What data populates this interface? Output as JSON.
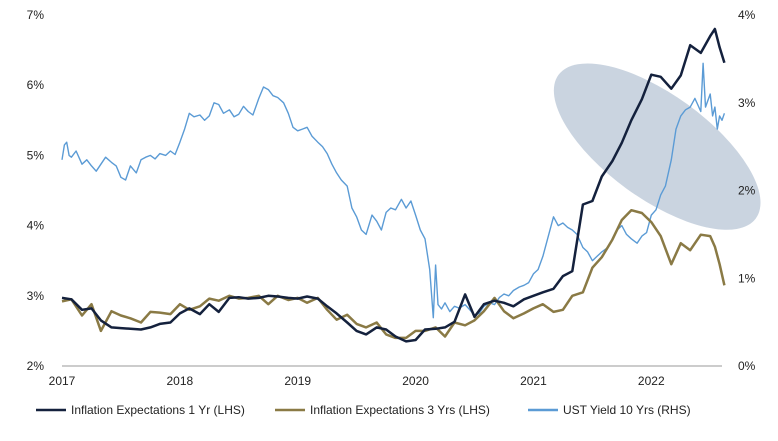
{
  "chart_data": {
    "type": "line",
    "x_ticks": [
      "2017",
      "2018",
      "2019",
      "2020",
      "2021",
      "2022"
    ],
    "y_left_ticks": [
      "2%",
      "3%",
      "4%",
      "5%",
      "6%",
      "7%"
    ],
    "y_right_ticks": [
      "0%",
      "1%",
      "2%",
      "3%",
      "4%"
    ],
    "ylim_left": [
      2,
      7
    ],
    "ylim_right": [
      0,
      4
    ],
    "xlim": [
      2017.0,
      2022.6
    ],
    "legend_position": "bottom",
    "highlight": {
      "shape": "ellipse",
      "center": [
        2022.05,
        2.5
      ],
      "axis": "right",
      "color": "#b8c6d6"
    },
    "series": [
      {
        "name": "Inflation Expectations 1 Yr (LHS)",
        "axis": "left",
        "color": "#14213d",
        "points": [
          [
            2017.0,
            2.97
          ],
          [
            2017.08,
            2.95
          ],
          [
            2017.17,
            2.8
          ],
          [
            2017.25,
            2.82
          ],
          [
            2017.33,
            2.65
          ],
          [
            2017.42,
            2.55
          ],
          [
            2017.5,
            2.54
          ],
          [
            2017.58,
            2.53
          ],
          [
            2017.67,
            2.52
          ],
          [
            2017.75,
            2.55
          ],
          [
            2017.83,
            2.6
          ],
          [
            2017.92,
            2.62
          ],
          [
            2018.0,
            2.75
          ],
          [
            2018.08,
            2.82
          ],
          [
            2018.17,
            2.74
          ],
          [
            2018.25,
            2.88
          ],
          [
            2018.33,
            2.77
          ],
          [
            2018.42,
            2.97
          ],
          [
            2018.5,
            2.98
          ],
          [
            2018.58,
            2.96
          ],
          [
            2018.67,
            2.97
          ],
          [
            2018.75,
            3.0
          ],
          [
            2018.83,
            2.99
          ],
          [
            2018.92,
            2.97
          ],
          [
            2019.0,
            2.96
          ],
          [
            2019.08,
            2.99
          ],
          [
            2019.17,
            2.96
          ],
          [
            2019.25,
            2.85
          ],
          [
            2019.33,
            2.75
          ],
          [
            2019.42,
            2.62
          ],
          [
            2019.5,
            2.5
          ],
          [
            2019.58,
            2.45
          ],
          [
            2019.67,
            2.55
          ],
          [
            2019.75,
            2.52
          ],
          [
            2019.83,
            2.42
          ],
          [
            2019.92,
            2.35
          ],
          [
            2020.0,
            2.37
          ],
          [
            2020.08,
            2.52
          ],
          [
            2020.17,
            2.53
          ],
          [
            2020.25,
            2.55
          ],
          [
            2020.33,
            2.63
          ],
          [
            2020.42,
            3.02
          ],
          [
            2020.5,
            2.7
          ],
          [
            2020.58,
            2.88
          ],
          [
            2020.67,
            2.93
          ],
          [
            2020.75,
            2.9
          ],
          [
            2020.83,
            2.85
          ],
          [
            2020.92,
            2.95
          ],
          [
            2021.0,
            3.0
          ],
          [
            2021.08,
            3.05
          ],
          [
            2021.17,
            3.1
          ],
          [
            2021.25,
            3.28
          ],
          [
            2021.33,
            3.35
          ],
          [
            2021.42,
            4.3
          ],
          [
            2021.5,
            4.35
          ],
          [
            2021.58,
            4.7
          ],
          [
            2021.67,
            4.92
          ],
          [
            2021.75,
            5.18
          ],
          [
            2021.83,
            5.5
          ],
          [
            2021.92,
            5.8
          ],
          [
            2022.0,
            6.15
          ],
          [
            2022.08,
            6.12
          ],
          [
            2022.17,
            5.95
          ],
          [
            2022.25,
            6.14
          ],
          [
            2022.33,
            6.57
          ],
          [
            2022.42,
            6.46
          ],
          [
            2022.5,
            6.7
          ],
          [
            2022.54,
            6.8
          ],
          [
            2022.58,
            6.54
          ],
          [
            2022.62,
            6.32
          ]
        ]
      },
      {
        "name": "Inflation Expectations 3 Yrs (LHS)",
        "axis": "left",
        "color": "#8a7a45",
        "points": [
          [
            2017.0,
            2.92
          ],
          [
            2017.08,
            2.95
          ],
          [
            2017.17,
            2.72
          ],
          [
            2017.25,
            2.88
          ],
          [
            2017.33,
            2.5
          ],
          [
            2017.42,
            2.78
          ],
          [
            2017.5,
            2.72
          ],
          [
            2017.58,
            2.68
          ],
          [
            2017.67,
            2.62
          ],
          [
            2017.75,
            2.77
          ],
          [
            2017.83,
            2.76
          ],
          [
            2017.92,
            2.74
          ],
          [
            2018.0,
            2.88
          ],
          [
            2018.08,
            2.8
          ],
          [
            2018.17,
            2.85
          ],
          [
            2018.25,
            2.96
          ],
          [
            2018.33,
            2.93
          ],
          [
            2018.42,
            3.0
          ],
          [
            2018.5,
            2.96
          ],
          [
            2018.58,
            2.97
          ],
          [
            2018.67,
            3.0
          ],
          [
            2018.75,
            2.88
          ],
          [
            2018.83,
            3.0
          ],
          [
            2018.92,
            2.94
          ],
          [
            2019.0,
            2.97
          ],
          [
            2019.08,
            2.9
          ],
          [
            2019.17,
            2.97
          ],
          [
            2019.25,
            2.8
          ],
          [
            2019.33,
            2.66
          ],
          [
            2019.42,
            2.73
          ],
          [
            2019.5,
            2.6
          ],
          [
            2019.58,
            2.55
          ],
          [
            2019.67,
            2.62
          ],
          [
            2019.75,
            2.45
          ],
          [
            2019.83,
            2.4
          ],
          [
            2019.92,
            2.4
          ],
          [
            2020.0,
            2.5
          ],
          [
            2020.08,
            2.5
          ],
          [
            2020.17,
            2.55
          ],
          [
            2020.25,
            2.42
          ],
          [
            2020.33,
            2.62
          ],
          [
            2020.42,
            2.58
          ],
          [
            2020.5,
            2.65
          ],
          [
            2020.58,
            2.78
          ],
          [
            2020.67,
            2.97
          ],
          [
            2020.75,
            2.78
          ],
          [
            2020.83,
            2.68
          ],
          [
            2020.92,
            2.75
          ],
          [
            2021.0,
            2.82
          ],
          [
            2021.08,
            2.88
          ],
          [
            2021.17,
            2.77
          ],
          [
            2021.25,
            2.8
          ],
          [
            2021.33,
            3.0
          ],
          [
            2021.42,
            3.05
          ],
          [
            2021.5,
            3.4
          ],
          [
            2021.58,
            3.55
          ],
          [
            2021.67,
            3.8
          ],
          [
            2021.75,
            4.08
          ],
          [
            2021.83,
            4.22
          ],
          [
            2021.92,
            4.18
          ],
          [
            2022.0,
            4.05
          ],
          [
            2022.08,
            3.85
          ],
          [
            2022.17,
            3.45
          ],
          [
            2022.25,
            3.75
          ],
          [
            2022.33,
            3.65
          ],
          [
            2022.42,
            3.87
          ],
          [
            2022.5,
            3.85
          ],
          [
            2022.54,
            3.7
          ],
          [
            2022.58,
            3.45
          ],
          [
            2022.62,
            3.15
          ]
        ]
      },
      {
        "name": "UST Yield 10 Yrs (RHS)",
        "axis": "right",
        "color": "#5b9bd5",
        "points": [
          [
            2017.0,
            2.35
          ],
          [
            2017.02,
            2.52
          ],
          [
            2017.04,
            2.55
          ],
          [
            2017.06,
            2.4
          ],
          [
            2017.08,
            2.38
          ],
          [
            2017.12,
            2.45
          ],
          [
            2017.17,
            2.3
          ],
          [
            2017.21,
            2.35
          ],
          [
            2017.25,
            2.28
          ],
          [
            2017.29,
            2.22
          ],
          [
            2017.33,
            2.3
          ],
          [
            2017.37,
            2.38
          ],
          [
            2017.42,
            2.32
          ],
          [
            2017.46,
            2.28
          ],
          [
            2017.5,
            2.15
          ],
          [
            2017.54,
            2.12
          ],
          [
            2017.58,
            2.28
          ],
          [
            2017.63,
            2.2
          ],
          [
            2017.67,
            2.35
          ],
          [
            2017.71,
            2.38
          ],
          [
            2017.75,
            2.4
          ],
          [
            2017.79,
            2.36
          ],
          [
            2017.83,
            2.42
          ],
          [
            2017.88,
            2.4
          ],
          [
            2017.92,
            2.45
          ],
          [
            2017.96,
            2.41
          ],
          [
            2018.0,
            2.55
          ],
          [
            2018.04,
            2.7
          ],
          [
            2018.08,
            2.88
          ],
          [
            2018.12,
            2.84
          ],
          [
            2018.17,
            2.86
          ],
          [
            2018.21,
            2.8
          ],
          [
            2018.25,
            2.85
          ],
          [
            2018.29,
            3.0
          ],
          [
            2018.33,
            2.98
          ],
          [
            2018.37,
            2.88
          ],
          [
            2018.42,
            2.92
          ],
          [
            2018.46,
            2.84
          ],
          [
            2018.5,
            2.87
          ],
          [
            2018.54,
            2.96
          ],
          [
            2018.58,
            2.9
          ],
          [
            2018.62,
            2.86
          ],
          [
            2018.67,
            3.05
          ],
          [
            2018.71,
            3.18
          ],
          [
            2018.75,
            3.15
          ],
          [
            2018.79,
            3.08
          ],
          [
            2018.83,
            3.06
          ],
          [
            2018.88,
            3.0
          ],
          [
            2018.92,
            2.88
          ],
          [
            2018.96,
            2.72
          ],
          [
            2019.0,
            2.68
          ],
          [
            2019.04,
            2.7
          ],
          [
            2019.08,
            2.72
          ],
          [
            2019.12,
            2.62
          ],
          [
            2019.17,
            2.55
          ],
          [
            2019.21,
            2.5
          ],
          [
            2019.25,
            2.42
          ],
          [
            2019.29,
            2.3
          ],
          [
            2019.33,
            2.2
          ],
          [
            2019.37,
            2.12
          ],
          [
            2019.42,
            2.05
          ],
          [
            2019.46,
            1.8
          ],
          [
            2019.5,
            1.7
          ],
          [
            2019.54,
            1.55
          ],
          [
            2019.58,
            1.5
          ],
          [
            2019.63,
            1.72
          ],
          [
            2019.67,
            1.65
          ],
          [
            2019.71,
            1.55
          ],
          [
            2019.75,
            1.75
          ],
          [
            2019.79,
            1.8
          ],
          [
            2019.83,
            1.78
          ],
          [
            2019.88,
            1.9
          ],
          [
            2019.92,
            1.8
          ],
          [
            2019.96,
            1.88
          ],
          [
            2020.0,
            1.72
          ],
          [
            2020.04,
            1.55
          ],
          [
            2020.08,
            1.45
          ],
          [
            2020.12,
            1.1
          ],
          [
            2020.15,
            0.55
          ],
          [
            2020.17,
            1.15
          ],
          [
            2020.19,
            0.7
          ],
          [
            2020.22,
            0.65
          ],
          [
            2020.25,
            0.72
          ],
          [
            2020.29,
            0.62
          ],
          [
            2020.33,
            0.68
          ],
          [
            2020.37,
            0.66
          ],
          [
            2020.42,
            0.7
          ],
          [
            2020.46,
            0.64
          ],
          [
            2020.5,
            0.58
          ],
          [
            2020.54,
            0.6
          ],
          [
            2020.58,
            0.68
          ],
          [
            2020.63,
            0.72
          ],
          [
            2020.67,
            0.7
          ],
          [
            2020.71,
            0.78
          ],
          [
            2020.75,
            0.82
          ],
          [
            2020.79,
            0.8
          ],
          [
            2020.83,
            0.86
          ],
          [
            2020.88,
            0.9
          ],
          [
            2020.92,
            0.92
          ],
          [
            2020.96,
            0.95
          ],
          [
            2021.0,
            1.05
          ],
          [
            2021.04,
            1.1
          ],
          [
            2021.08,
            1.25
          ],
          [
            2021.12,
            1.45
          ],
          [
            2021.17,
            1.7
          ],
          [
            2021.21,
            1.6
          ],
          [
            2021.25,
            1.63
          ],
          [
            2021.29,
            1.58
          ],
          [
            2021.33,
            1.55
          ],
          [
            2021.37,
            1.5
          ],
          [
            2021.42,
            1.35
          ],
          [
            2021.46,
            1.3
          ],
          [
            2021.5,
            1.2
          ],
          [
            2021.54,
            1.25
          ],
          [
            2021.58,
            1.3
          ],
          [
            2021.63,
            1.35
          ],
          [
            2021.67,
            1.45
          ],
          [
            2021.71,
            1.55
          ],
          [
            2021.75,
            1.6
          ],
          [
            2021.79,
            1.5
          ],
          [
            2021.83,
            1.45
          ],
          [
            2021.88,
            1.4
          ],
          [
            2021.92,
            1.48
          ],
          [
            2021.96,
            1.52
          ],
          [
            2022.0,
            1.72
          ],
          [
            2022.04,
            1.78
          ],
          [
            2022.08,
            1.95
          ],
          [
            2022.12,
            2.05
          ],
          [
            2022.17,
            2.35
          ],
          [
            2022.21,
            2.7
          ],
          [
            2022.25,
            2.85
          ],
          [
            2022.29,
            2.92
          ],
          [
            2022.33,
            2.95
          ],
          [
            2022.37,
            3.05
          ],
          [
            2022.42,
            2.9
          ],
          [
            2022.44,
            3.45
          ],
          [
            2022.46,
            2.95
          ],
          [
            2022.5,
            3.1
          ],
          [
            2022.52,
            2.85
          ],
          [
            2022.54,
            2.95
          ],
          [
            2022.56,
            2.7
          ],
          [
            2022.58,
            2.85
          ],
          [
            2022.6,
            2.8
          ],
          [
            2022.62,
            2.88
          ]
        ]
      }
    ]
  }
}
